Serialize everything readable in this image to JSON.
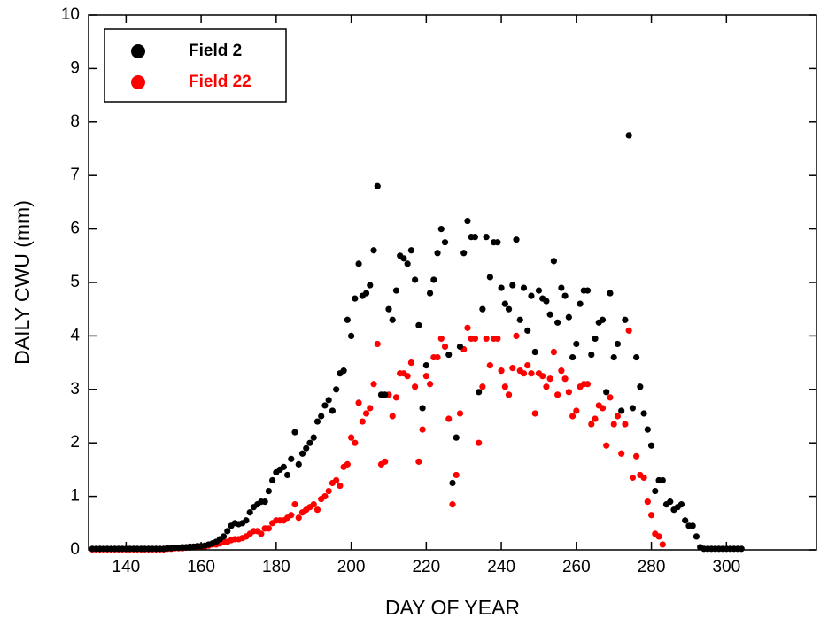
{
  "chart_data": {
    "type": "scatter",
    "xlabel": "DAY OF YEAR",
    "ylabel": "DAILY CWU (mm)",
    "xlim": [
      130,
      324
    ],
    "ylim": [
      0,
      10
    ],
    "xticks": [
      140,
      160,
      180,
      200,
      220,
      240,
      260,
      280,
      300
    ],
    "yticks": [
      0,
      1,
      2,
      3,
      4,
      5,
      6,
      7,
      8,
      9,
      10
    ],
    "legend": "upper left",
    "series": [
      {
        "name": "Field 22",
        "color": "#ff0000",
        "x": [
          131,
          132,
          133,
          134,
          135,
          136,
          137,
          138,
          139,
          140,
          141,
          142,
          143,
          144,
          145,
          146,
          147,
          148,
          149,
          150,
          151,
          152,
          153,
          154,
          155,
          156,
          157,
          158,
          159,
          160,
          161,
          162,
          163,
          164,
          165,
          166,
          167,
          168,
          169,
          170,
          171,
          172,
          173,
          174,
          175,
          176,
          177,
          178,
          179,
          180,
          181,
          182,
          183,
          184,
          185,
          186,
          187,
          188,
          189,
          190,
          191,
          192,
          193,
          194,
          195,
          196,
          197,
          198,
          199,
          200,
          201,
          202,
          203,
          204,
          205,
          206,
          207,
          208,
          209,
          210,
          211,
          212,
          213,
          214,
          215,
          216,
          217,
          218,
          219,
          220,
          221,
          222,
          223,
          224,
          225,
          226,
          227,
          228,
          229,
          230,
          231,
          232,
          233,
          234,
          235,
          236,
          237,
          238,
          239,
          240,
          241,
          242,
          243,
          244,
          245,
          246,
          247,
          248,
          249,
          250,
          251,
          252,
          253,
          254,
          255,
          256,
          257,
          258,
          259,
          260,
          261,
          262,
          263,
          264,
          265,
          266,
          267,
          268,
          269,
          270,
          271,
          272,
          273,
          274,
          275,
          276,
          277,
          278,
          279,
          280,
          281,
          282,
          283
        ],
        "values": [
          0.01,
          0.01,
          0.01,
          0.01,
          0.01,
          0.01,
          0.01,
          0.01,
          0.01,
          0.01,
          0.01,
          0.01,
          0.01,
          0.01,
          0.01,
          0.01,
          0.01,
          0.01,
          0.01,
          0.01,
          0.02,
          0.02,
          0.03,
          0.03,
          0.03,
          0.04,
          0.04,
          0.05,
          0.05,
          0.05,
          0.06,
          0.08,
          0.1,
          0.1,
          0.12,
          0.15,
          0.15,
          0.18,
          0.2,
          0.2,
          0.22,
          0.25,
          0.3,
          0.35,
          0.35,
          0.3,
          0.4,
          0.4,
          0.5,
          0.55,
          0.55,
          0.55,
          0.6,
          0.65,
          0.85,
          0.6,
          0.7,
          0.75,
          0.8,
          0.85,
          0.75,
          0.95,
          1.0,
          1.1,
          1.25,
          1.3,
          1.2,
          1.55,
          1.6,
          2.1,
          2.0,
          2.75,
          2.4,
          2.55,
          2.65,
          3.1,
          3.85,
          1.6,
          1.65,
          2.9,
          2.5,
          2.85,
          3.3,
          3.3,
          3.25,
          3.5,
          3.05,
          1.65,
          2.25,
          3.25,
          3.1,
          3.6,
          3.6,
          3.95,
          3.8,
          2.45,
          0.85,
          1.4,
          2.55,
          3.75,
          4.15,
          3.95,
          3.95,
          2.0,
          3.05,
          3.95,
          3.45,
          3.95,
          3.95,
          3.35,
          3.05,
          2.9,
          3.4,
          4.0,
          3.35,
          3.3,
          3.45,
          3.3,
          2.55,
          3.3,
          3.25,
          3.05,
          3.2,
          3.7,
          2.9,
          3.35,
          3.2,
          2.95,
          2.5,
          2.6,
          3.05,
          3.1,
          3.1,
          2.35,
          2.45,
          2.7,
          2.65,
          1.95,
          2.85,
          2.35,
          2.5,
          1.8,
          2.35,
          4.1,
          1.35,
          1.75,
          1.4,
          1.35,
          0.9,
          0.65,
          0.3,
          0.25,
          0.1
        ]
      },
      {
        "name": "Field 2",
        "color": "#000000",
        "x": [
          131,
          132,
          133,
          134,
          135,
          136,
          137,
          138,
          139,
          140,
          141,
          142,
          143,
          144,
          145,
          146,
          147,
          148,
          149,
          150,
          151,
          152,
          153,
          154,
          155,
          156,
          157,
          158,
          159,
          160,
          161,
          162,
          163,
          164,
          165,
          166,
          167,
          168,
          169,
          170,
          171,
          172,
          173,
          174,
          175,
          176,
          177,
          178,
          179,
          180,
          181,
          182,
          183,
          184,
          185,
          186,
          187,
          188,
          189,
          190,
          191,
          192,
          193,
          194,
          195,
          196,
          197,
          198,
          199,
          200,
          201,
          202,
          203,
          204,
          205,
          206,
          207,
          208,
          209,
          210,
          211,
          212,
          213,
          214,
          215,
          216,
          217,
          218,
          219,
          220,
          221,
          222,
          223,
          224,
          225,
          226,
          227,
          228,
          229,
          230,
          231,
          232,
          233,
          234,
          235,
          236,
          237,
          238,
          239,
          240,
          241,
          242,
          243,
          244,
          245,
          246,
          247,
          248,
          249,
          250,
          251,
          252,
          253,
          254,
          255,
          256,
          257,
          258,
          259,
          260,
          261,
          262,
          263,
          264,
          265,
          266,
          267,
          268,
          269,
          270,
          271,
          272,
          273,
          274,
          275,
          276,
          277,
          278,
          279,
          280,
          281,
          282,
          283,
          284,
          285,
          286,
          287,
          288,
          289,
          290,
          291,
          292,
          293,
          294,
          295,
          296,
          297,
          298,
          299,
          300,
          301,
          302,
          303,
          304
        ],
        "values": [
          0.02,
          0.02,
          0.02,
          0.02,
          0.02,
          0.02,
          0.02,
          0.02,
          0.02,
          0.02,
          0.02,
          0.02,
          0.02,
          0.02,
          0.02,
          0.02,
          0.02,
          0.02,
          0.02,
          0.02,
          0.03,
          0.03,
          0.04,
          0.04,
          0.05,
          0.05,
          0.06,
          0.06,
          0.07,
          0.07,
          0.08,
          0.1,
          0.12,
          0.15,
          0.2,
          0.25,
          0.35,
          0.45,
          0.5,
          0.48,
          0.5,
          0.55,
          0.7,
          0.8,
          0.85,
          0.9,
          0.9,
          1.1,
          1.3,
          1.45,
          1.5,
          1.55,
          1.4,
          1.7,
          2.2,
          1.6,
          1.8,
          1.9,
          2.0,
          2.1,
          2.4,
          2.5,
          2.7,
          2.8,
          2.6,
          3.0,
          3.3,
          3.35,
          4.3,
          4.0,
          4.7,
          5.35,
          4.75,
          4.8,
          4.95,
          5.6,
          6.8,
          2.9,
          2.9,
          4.5,
          4.3,
          4.85,
          5.5,
          5.45,
          5.35,
          5.6,
          5.05,
          4.2,
          2.65,
          3.45,
          4.8,
          5.05,
          5.55,
          6.0,
          5.75,
          3.65,
          1.25,
          2.1,
          3.8,
          5.55,
          6.15,
          5.85,
          5.85,
          2.95,
          4.5,
          5.85,
          5.1,
          5.75,
          5.75,
          4.9,
          4.6,
          4.5,
          4.95,
          5.8,
          4.3,
          4.9,
          4.1,
          4.75,
          3.7,
          4.85,
          4.7,
          4.65,
          4.4,
          5.4,
          4.25,
          4.9,
          4.75,
          4.35,
          3.6,
          3.85,
          4.6,
          4.85,
          4.85,
          3.65,
          3.95,
          4.25,
          4.3,
          2.95,
          4.8,
          3.6,
          3.85,
          2.6,
          4.3,
          7.75,
          2.65,
          3.6,
          3.05,
          2.55,
          2.25,
          1.95,
          1.1,
          1.3,
          1.3,
          0.85,
          0.9,
          0.75,
          0.8,
          0.85,
          0.55,
          0.45,
          0.45,
          0.25,
          0.05,
          0.02,
          0.02,
          0.02,
          0.02,
          0.02,
          0.02,
          0.02,
          0.02,
          0.02,
          0.02,
          0.02
        ]
      }
    ]
  }
}
